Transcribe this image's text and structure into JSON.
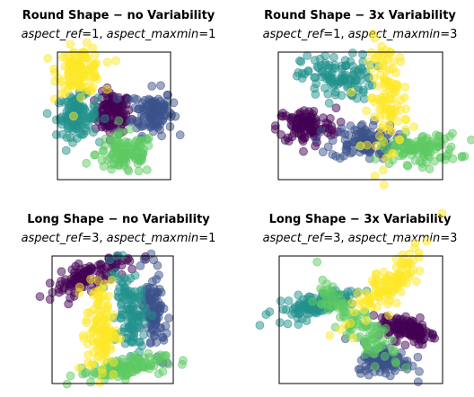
{
  "chart_data": [
    {
      "type": "scatter",
      "title": "Round Shape − no Variability",
      "subtitle": {
        "p1_name": "aspect_ref",
        "p1_value": "1",
        "p2_name": "aspect_maxmin",
        "p2_value": "1"
      },
      "axes": "hidden",
      "clusters": [
        {
          "color": "#440154",
          "center": [
            0.49,
            0.52
          ],
          "spread": [
            0.08,
            0.08
          ],
          "angle": 0,
          "n": 110
        },
        {
          "color": "#3b528b",
          "center": [
            0.84,
            0.53
          ],
          "spread": [
            0.09,
            0.09
          ],
          "angle": 0,
          "n": 110
        },
        {
          "color": "#21918c",
          "center": [
            0.17,
            0.5
          ],
          "spread": [
            0.09,
            0.08
          ],
          "angle": 0,
          "n": 110
        },
        {
          "color": "#5ec962",
          "center": [
            0.6,
            0.2
          ],
          "spread": [
            0.13,
            0.08
          ],
          "angle": 0,
          "n": 110
        },
        {
          "color": "#fde725",
          "center": [
            0.2,
            0.86
          ],
          "spread": [
            0.1,
            0.09
          ],
          "angle": 0,
          "n": 110
        }
      ]
    },
    {
      "type": "scatter",
      "title": "Round Shape − 3x Variability",
      "subtitle": {
        "p1_name": "aspect_ref",
        "p1_value": "1",
        "p2_name": "aspect_maxmin",
        "p2_value": "3"
      },
      "axes": "hidden",
      "clusters": [
        {
          "color": "#440154",
          "center": [
            0.17,
            0.42
          ],
          "spread": [
            0.09,
            0.07
          ],
          "angle": 0,
          "n": 110
        },
        {
          "color": "#3b528b",
          "center": [
            0.52,
            0.3
          ],
          "spread": [
            0.1,
            0.07
          ],
          "angle": 0,
          "n": 110
        },
        {
          "color": "#21918c",
          "center": [
            0.36,
            0.8
          ],
          "spread": [
            0.11,
            0.09
          ],
          "angle": 0,
          "n": 110
        },
        {
          "color": "#5ec962",
          "center": [
            0.86,
            0.24
          ],
          "spread": [
            0.12,
            0.06
          ],
          "angle": 0,
          "n": 110
        },
        {
          "color": "#fde725",
          "center": [
            0.67,
            0.65
          ],
          "spread": [
            0.06,
            0.22
          ],
          "angle": 0,
          "n": 110
        }
      ]
    },
    {
      "type": "scatter",
      "title": "Long Shape − no Variability",
      "subtitle": {
        "p1_name": "aspect_ref",
        "p1_value": "3",
        "p2_name": "aspect_maxmin",
        "p2_value": "1"
      },
      "axes": "hidden",
      "clusters": [
        {
          "color": "#440154",
          "center": [
            0.3,
            0.84
          ],
          "spread": [
            0.18,
            0.05
          ],
          "angle": 20,
          "n": 110
        },
        {
          "color": "#3b528b",
          "center": [
            0.84,
            0.55
          ],
          "spread": [
            0.05,
            0.16
          ],
          "angle": 8,
          "n": 110
        },
        {
          "color": "#21918c",
          "center": [
            0.64,
            0.57
          ],
          "spread": [
            0.06,
            0.17
          ],
          "angle": 10,
          "n": 110
        },
        {
          "color": "#5ec962",
          "center": [
            0.57,
            0.12
          ],
          "spread": [
            0.18,
            0.04
          ],
          "angle": 8,
          "n": 110
        },
        {
          "color": "#fde725",
          "center": [
            0.4,
            0.42
          ],
          "spread": [
            0.06,
            0.19
          ],
          "angle": 4,
          "n": 110
        }
      ]
    },
    {
      "type": "scatter",
      "title": "Long Shape − 3x Variability",
      "subtitle": {
        "p1_name": "aspect_ref",
        "p1_value": "3",
        "p2_name": "aspect_maxmin",
        "p2_value": "3"
      },
      "axes": "hidden",
      "clusters": [
        {
          "color": "#440154",
          "center": [
            0.79,
            0.43
          ],
          "spread": [
            0.09,
            0.05
          ],
          "angle": -20,
          "n": 110
        },
        {
          "color": "#3b528b",
          "center": [
            0.65,
            0.18
          ],
          "spread": [
            0.08,
            0.06
          ],
          "angle": -10,
          "n": 110
        },
        {
          "color": "#21918c",
          "center": [
            0.21,
            0.62
          ],
          "spread": [
            0.13,
            0.04
          ],
          "angle": 18,
          "n": 110
        },
        {
          "color": "#5ec962",
          "center": [
            0.48,
            0.46
          ],
          "spread": [
            0.05,
            0.2
          ],
          "angle": 35,
          "n": 110
        },
        {
          "color": "#fde725",
          "center": [
            0.66,
            0.78
          ],
          "spread": [
            0.05,
            0.18
          ],
          "angle": -40,
          "n": 110
        }
      ]
    }
  ]
}
